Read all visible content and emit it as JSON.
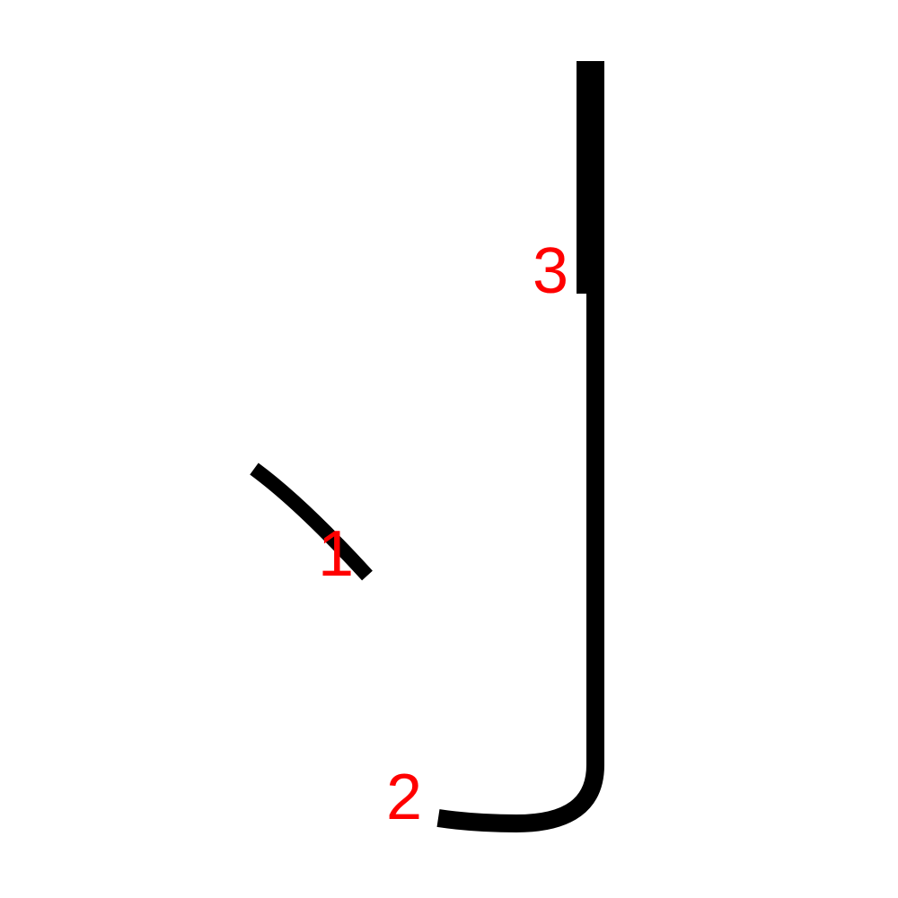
{
  "colors": {
    "background": "#ffffff",
    "stroke": "#000000",
    "number": "#ff0000"
  },
  "strokes": [
    {
      "order": "1"
    },
    {
      "order": "2"
    },
    {
      "order": "3"
    }
  ]
}
